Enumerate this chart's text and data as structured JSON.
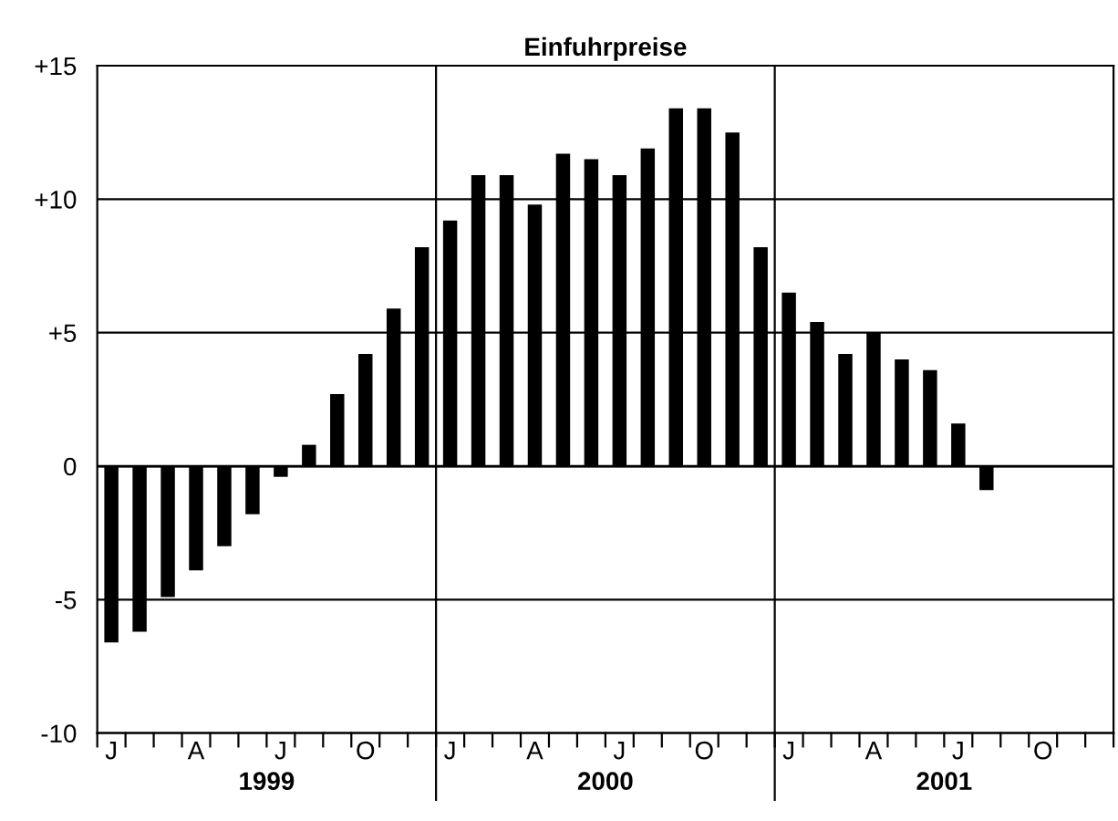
{
  "chart_data": {
    "type": "bar",
    "title": "Einfuhrpreise",
    "categories": [
      "J",
      null,
      null,
      "A",
      null,
      null,
      "J",
      null,
      null,
      "O",
      null,
      null,
      "J",
      null,
      null,
      "A",
      null,
      null,
      "J",
      null,
      null,
      "O",
      null,
      null,
      "J",
      null,
      null,
      "A",
      null,
      null,
      "J",
      null,
      null,
      "O",
      null,
      null
    ],
    "values": [
      -6.6,
      -6.2,
      -4.9,
      -3.9,
      -3.0,
      -1.8,
      -0.4,
      0.8,
      2.7,
      4.2,
      5.9,
      8.2,
      9.2,
      10.9,
      10.9,
      9.8,
      11.7,
      11.5,
      10.9,
      11.9,
      13.4,
      13.4,
      12.5,
      8.2,
      6.5,
      5.4,
      4.2,
      5.0,
      4.0,
      3.6,
      1.6,
      -0.9,
      null,
      null,
      null,
      null
    ],
    "color": "#000000",
    "ylim": [
      -10,
      15
    ],
    "yticks": [
      {
        "value": -10,
        "label": "-10"
      },
      {
        "value": -5,
        "label": "-5"
      },
      0,
      {
        "value": 5,
        "label": "+5"
      },
      {
        "value": 10,
        "label": "+10"
      },
      {
        "value": 15,
        "label": "+15"
      }
    ],
    "grid": true,
    "annotations": [
      "1999",
      "2000",
      "2001"
    ]
  }
}
